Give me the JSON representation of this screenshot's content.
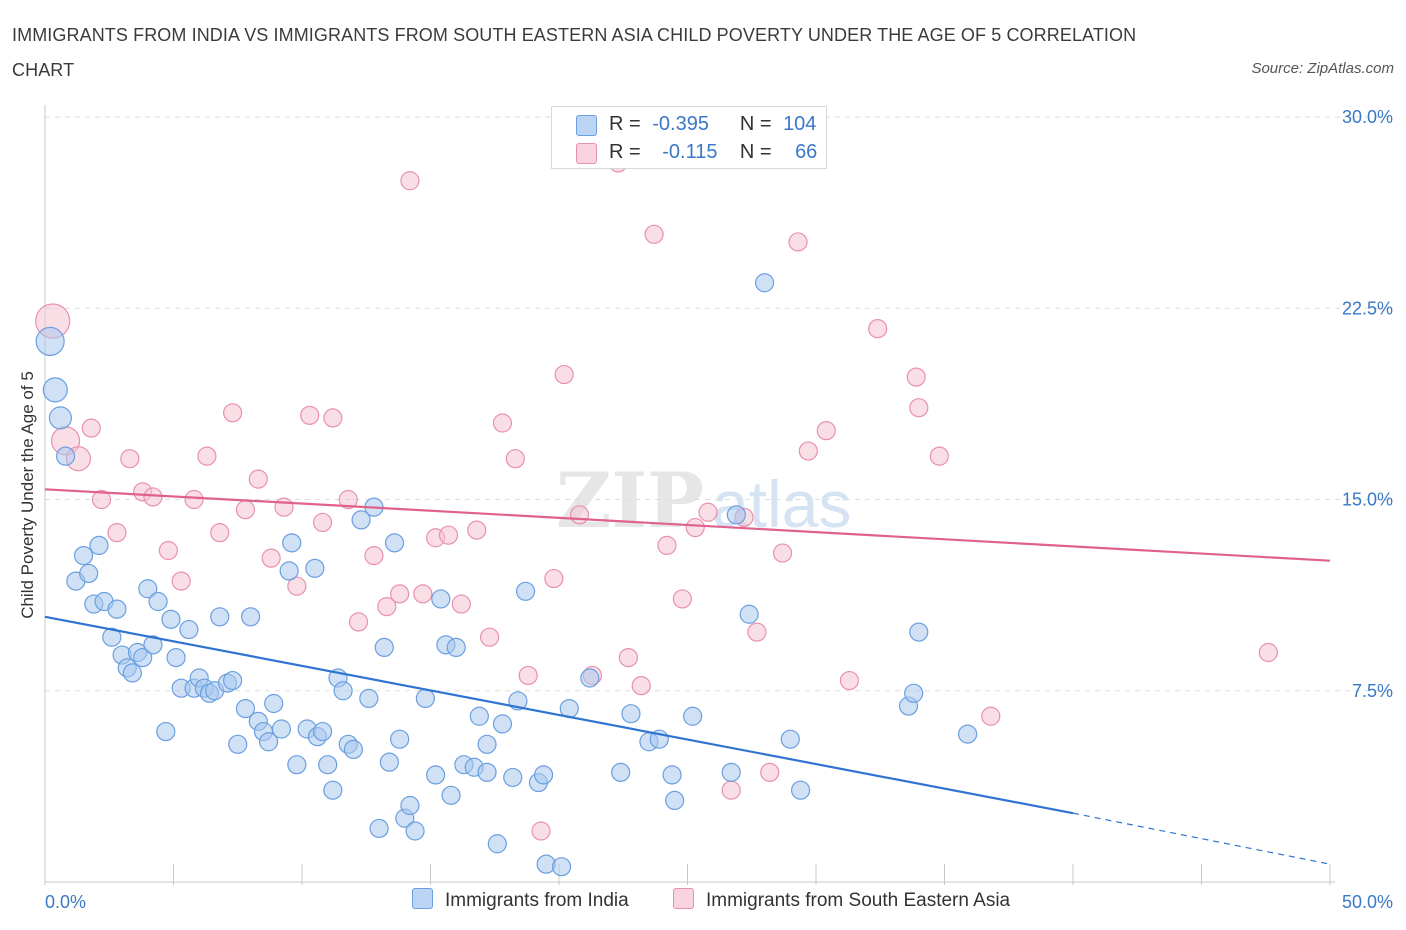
{
  "title": "IMMIGRANTS FROM INDIA VS IMMIGRANTS FROM SOUTH EASTERN ASIA CHILD POVERTY UNDER THE AGE OF 5 CORRELATION CHART",
  "source": "Source: ZipAtlas.com",
  "watermark": "ZIPatlas",
  "legend_top": {
    "india": {
      "r_label": "R =",
      "r_value": "-0.395",
      "n_label": "N =",
      "n_value": "104"
    },
    "sea": {
      "r_label": "R =",
      "r_value": "-0.115",
      "n_label": "N =",
      "n_value": "66"
    }
  },
  "colors": {
    "india_fill": "#a9c8ef",
    "india_stroke": "#6a9fe0",
    "india_line": "#2f74d0",
    "sea_fill": "#f6c3d2",
    "sea_stroke": "#e891ae",
    "sea_line": "#e0628c",
    "grid": "#dddddd",
    "tick_label": "#3a78c8"
  },
  "chart_data": {
    "type": "scatter",
    "title": "IMMIGRANTS FROM INDIA VS IMMIGRANTS FROM SOUTH EASTERN ASIA CHILD POVERTY UNDER THE AGE OF 5 CORRELATION CHART",
    "xlabel": "",
    "ylabel": "Child Poverty Under the Age of 5",
    "xlim": [
      0,
      50
    ],
    "ylim": [
      0,
      30
    ],
    "x_tick_labels": [
      "0.0%",
      "50.0%"
    ],
    "y_ticks": [
      7.5,
      15.0,
      22.5,
      30.0
    ],
    "y_tick_labels": [
      "7.5%",
      "15.0%",
      "22.5%",
      "30.0%"
    ],
    "grid": true,
    "legend_position": "bottom",
    "series": [
      {
        "name": "Immigrants from India",
        "color": "#a9c8ef",
        "trend": {
          "x": [
            0,
            40
          ],
          "y": [
            10.4,
            2.7
          ],
          "dashed_to": [
            50,
            0.7
          ]
        },
        "points": [
          [
            0.2,
            21.2,
            14
          ],
          [
            0.4,
            19.3,
            12
          ],
          [
            0.6,
            18.2,
            11
          ],
          [
            0.8,
            16.7,
            9
          ],
          [
            1.2,
            11.8,
            9
          ],
          [
            1.5,
            12.8,
            9
          ],
          [
            1.7,
            12.1,
            9
          ],
          [
            1.9,
            10.9,
            9
          ],
          [
            2.1,
            13.2,
            9
          ],
          [
            2.3,
            11.0,
            9
          ],
          [
            2.6,
            9.6,
            9
          ],
          [
            2.8,
            10.7,
            9
          ],
          [
            3.0,
            8.9,
            9
          ],
          [
            3.2,
            8.4,
            9
          ],
          [
            3.4,
            8.2,
            9
          ],
          [
            3.6,
            9.0,
            9
          ],
          [
            3.8,
            8.8,
            9
          ],
          [
            4.0,
            11.5,
            9
          ],
          [
            4.2,
            9.3,
            9
          ],
          [
            4.4,
            11.0,
            9
          ],
          [
            4.7,
            5.9,
            9
          ],
          [
            4.9,
            10.3,
            9
          ],
          [
            5.1,
            8.8,
            9
          ],
          [
            5.3,
            7.6,
            9
          ],
          [
            5.6,
            9.9,
            9
          ],
          [
            5.8,
            7.6,
            9
          ],
          [
            6.0,
            8.0,
            9
          ],
          [
            6.2,
            7.6,
            9
          ],
          [
            6.4,
            7.4,
            9
          ],
          [
            6.6,
            7.5,
            9
          ],
          [
            6.8,
            10.4,
            9
          ],
          [
            7.1,
            7.8,
            9
          ],
          [
            7.3,
            7.9,
            9
          ],
          [
            7.5,
            5.4,
            9
          ],
          [
            7.8,
            6.8,
            9
          ],
          [
            8.0,
            10.4,
            9
          ],
          [
            8.3,
            6.3,
            9
          ],
          [
            8.5,
            5.9,
            9
          ],
          [
            8.7,
            5.5,
            9
          ],
          [
            8.9,
            7.0,
            9
          ],
          [
            9.2,
            6.0,
            9
          ],
          [
            9.5,
            12.2,
            9
          ],
          [
            9.6,
            13.3,
            9
          ],
          [
            9.8,
            4.6,
            9
          ],
          [
            10.2,
            6.0,
            9
          ],
          [
            10.5,
            12.3,
            9
          ],
          [
            10.6,
            5.7,
            9
          ],
          [
            10.8,
            5.9,
            9
          ],
          [
            11.0,
            4.6,
            9
          ],
          [
            11.2,
            3.6,
            9
          ],
          [
            11.4,
            8.0,
            9
          ],
          [
            11.6,
            7.5,
            9
          ],
          [
            11.8,
            5.4,
            9
          ],
          [
            12.0,
            5.2,
            9
          ],
          [
            12.3,
            14.2,
            9
          ],
          [
            12.6,
            7.2,
            9
          ],
          [
            12.8,
            14.7,
            9
          ],
          [
            13.0,
            2.1,
            9
          ],
          [
            13.2,
            9.2,
            9
          ],
          [
            13.4,
            4.7,
            9
          ],
          [
            13.6,
            13.3,
            9
          ],
          [
            13.8,
            5.6,
            9
          ],
          [
            14.0,
            2.5,
            9
          ],
          [
            14.2,
            3.0,
            9
          ],
          [
            14.4,
            2.0,
            9
          ],
          [
            14.8,
            7.2,
            9
          ],
          [
            15.2,
            4.2,
            9
          ],
          [
            15.4,
            11.1,
            9
          ],
          [
            15.6,
            9.3,
            9
          ],
          [
            15.8,
            3.4,
            9
          ],
          [
            16.0,
            9.2,
            9
          ],
          [
            16.3,
            4.6,
            9
          ],
          [
            16.7,
            4.5,
            9
          ],
          [
            16.9,
            6.5,
            9
          ],
          [
            17.2,
            5.4,
            9
          ],
          [
            17.2,
            4.3,
            9
          ],
          [
            17.6,
            1.5,
            9
          ],
          [
            17.8,
            6.2,
            9
          ],
          [
            18.2,
            4.1,
            9
          ],
          [
            18.4,
            7.1,
            9
          ],
          [
            18.7,
            11.4,
            9
          ],
          [
            19.2,
            3.9,
            9
          ],
          [
            19.4,
            4.2,
            9
          ],
          [
            19.5,
            0.7,
            9
          ],
          [
            20.1,
            0.6,
            9
          ],
          [
            20.4,
            6.8,
            9
          ],
          [
            21.2,
            8.0,
            9
          ],
          [
            22.4,
            4.3,
            9
          ],
          [
            22.8,
            6.6,
            9
          ],
          [
            23.5,
            5.5,
            9
          ],
          [
            23.9,
            5.6,
            9
          ],
          [
            24.4,
            4.2,
            9
          ],
          [
            24.5,
            3.2,
            9
          ],
          [
            25.2,
            6.5,
            9
          ],
          [
            26.7,
            4.3,
            9
          ],
          [
            26.9,
            14.4,
            9
          ],
          [
            27.4,
            10.5,
            9
          ],
          [
            28.0,
            23.5,
            9
          ],
          [
            29.0,
            5.6,
            9
          ],
          [
            29.4,
            3.6,
            9
          ],
          [
            33.6,
            6.9,
            9
          ],
          [
            33.8,
            7.4,
            9
          ],
          [
            34.0,
            9.8,
            9
          ],
          [
            35.9,
            5.8,
            9
          ]
        ]
      },
      {
        "name": "Immigrants from South Eastern Asia",
        "color": "#f6c3d2",
        "trend": {
          "x": [
            0,
            50
          ],
          "y": [
            15.4,
            12.6
          ]
        },
        "points": [
          [
            0.3,
            22.0,
            17
          ],
          [
            0.8,
            17.3,
            14
          ],
          [
            1.3,
            16.6,
            12
          ],
          [
            1.8,
            17.8,
            9
          ],
          [
            2.2,
            15.0,
            9
          ],
          [
            2.8,
            13.7,
            9
          ],
          [
            3.3,
            16.6,
            9
          ],
          [
            3.8,
            15.3,
            9
          ],
          [
            4.2,
            15.1,
            9
          ],
          [
            4.8,
            13.0,
            9
          ],
          [
            5.3,
            11.8,
            9
          ],
          [
            5.8,
            15.0,
            9
          ],
          [
            6.3,
            16.7,
            9
          ],
          [
            6.8,
            13.7,
            9
          ],
          [
            7.3,
            18.4,
            9
          ],
          [
            7.8,
            14.6,
            9
          ],
          [
            8.3,
            15.8,
            9
          ],
          [
            8.8,
            12.7,
            9
          ],
          [
            9.3,
            14.7,
            9
          ],
          [
            9.8,
            11.6,
            9
          ],
          [
            10.3,
            18.3,
            9
          ],
          [
            10.8,
            14.1,
            9
          ],
          [
            11.2,
            18.2,
            9
          ],
          [
            11.8,
            15.0,
            9
          ],
          [
            12.2,
            10.2,
            9
          ],
          [
            12.8,
            12.8,
            9
          ],
          [
            13.3,
            10.8,
            9
          ],
          [
            13.8,
            11.3,
            9
          ],
          [
            14.2,
            27.5,
            9
          ],
          [
            14.7,
            11.3,
            9
          ],
          [
            15.2,
            13.5,
            9
          ],
          [
            15.7,
            13.6,
            9
          ],
          [
            16.2,
            10.9,
            9
          ],
          [
            16.8,
            13.8,
            9
          ],
          [
            17.3,
            9.6,
            9
          ],
          [
            17.8,
            18.0,
            9
          ],
          [
            18.3,
            16.6,
            9
          ],
          [
            18.8,
            8.1,
            9
          ],
          [
            19.3,
            2.0,
            9
          ],
          [
            19.8,
            11.9,
            9
          ],
          [
            20.2,
            19.9,
            9
          ],
          [
            20.8,
            14.4,
            9
          ],
          [
            21.3,
            8.1,
            9
          ],
          [
            22.3,
            28.2,
            9
          ],
          [
            22.7,
            8.8,
            9
          ],
          [
            23.2,
            7.7,
            9
          ],
          [
            23.7,
            25.4,
            9
          ],
          [
            24.2,
            13.2,
            9
          ],
          [
            24.8,
            11.1,
            9
          ],
          [
            25.3,
            13.9,
            9
          ],
          [
            25.8,
            14.5,
            9
          ],
          [
            26.7,
            3.6,
            9
          ],
          [
            27.2,
            14.3,
            9
          ],
          [
            27.7,
            9.8,
            9
          ],
          [
            28.2,
            4.3,
            9
          ],
          [
            28.7,
            12.9,
            9
          ],
          [
            29.3,
            25.1,
            9
          ],
          [
            29.7,
            16.9,
            9
          ],
          [
            30.4,
            17.7,
            9
          ],
          [
            31.3,
            7.9,
            9
          ],
          [
            32.4,
            21.7,
            9
          ],
          [
            33.9,
            19.8,
            9
          ],
          [
            34.0,
            18.6,
            9
          ],
          [
            34.8,
            16.7,
            9
          ],
          [
            36.8,
            6.5,
            9
          ],
          [
            47.6,
            9.0,
            9
          ]
        ]
      }
    ]
  },
  "legend_bottom": [
    {
      "label": "Immigrants from India"
    },
    {
      "label": "Immigrants from South Eastern Asia"
    }
  ]
}
